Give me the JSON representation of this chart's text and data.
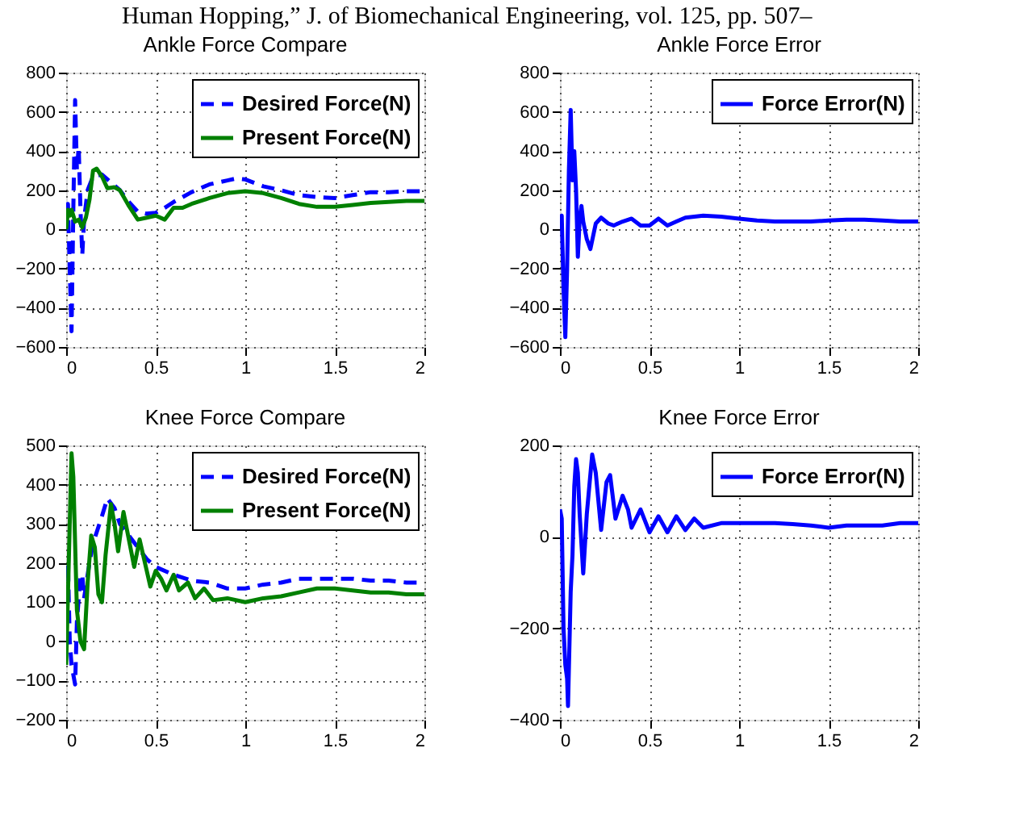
{
  "chart_data": [
    {
      "type": "line",
      "title": "Ankle Force Compare",
      "annotations": [
        "Human Hopping,” J. of Biomechanical Engineering, vol. 125, pp. 507–"
      ],
      "xlim": [
        0,
        2
      ],
      "xticks": [
        0,
        0.5,
        1,
        1.5,
        2
      ],
      "ylim": [
        -600,
        800
      ],
      "yticks": [
        -600,
        -400,
        -200,
        0,
        200,
        400,
        600,
        800
      ],
      "grid": true,
      "legend": "top right",
      "series": [
        {
          "name": "Desired Force(N)",
          "color": "#0000ff",
          "line_style": "dashed",
          "x": [
            0,
            0.01,
            0.02,
            0.03,
            0.04,
            0.05,
            0.06,
            0.07,
            0.08,
            0.09,
            0.1,
            0.12,
            0.15,
            0.2,
            0.25,
            0.3,
            0.35,
            0.4,
            0.45,
            0.5,
            0.55,
            0.6,
            0.7,
            0.8,
            0.9,
            0.95,
            1.0,
            1.1,
            1.2,
            1.3,
            1.4,
            1.5,
            1.6,
            1.7,
            1.8,
            1.9,
            2.0
          ],
          "values": [
            0,
            130,
            -200,
            -520,
            100,
            660,
            300,
            420,
            100,
            -130,
            50,
            200,
            270,
            280,
            240,
            200,
            140,
            90,
            80,
            85,
            110,
            140,
            190,
            230,
            250,
            260,
            255,
            220,
            200,
            175,
            165,
            160,
            175,
            190,
            190,
            195,
            195
          ]
        },
        {
          "name": "Present Force(N)",
          "color": "#008000",
          "line_style": "solid",
          "x": [
            0,
            0.01,
            0.02,
            0.03,
            0.05,
            0.07,
            0.09,
            0.11,
            0.13,
            0.15,
            0.17,
            0.2,
            0.23,
            0.27,
            0.3,
            0.35,
            0.4,
            0.45,
            0.5,
            0.55,
            0.6,
            0.65,
            0.7,
            0.8,
            0.9,
            1.0,
            1.1,
            1.2,
            1.3,
            1.4,
            1.5,
            1.6,
            1.7,
            1.8,
            1.9,
            2.0
          ],
          "values": [
            0,
            100,
            70,
            100,
            40,
            50,
            10,
            60,
            150,
            300,
            310,
            270,
            210,
            215,
            200,
            120,
            50,
            60,
            70,
            50,
            110,
            110,
            130,
            160,
            185,
            195,
            185,
            160,
            130,
            115,
            115,
            125,
            135,
            140,
            145,
            145
          ]
        }
      ]
    },
    {
      "type": "line",
      "title": "Ankle Force Error",
      "xlim": [
        0,
        2
      ],
      "xticks": [
        0,
        0.5,
        1,
        1.5,
        2
      ],
      "ylim": [
        -600,
        800
      ],
      "yticks": [
        -600,
        -400,
        -200,
        0,
        200,
        400,
        600,
        800
      ],
      "grid": true,
      "legend": "top right",
      "series": [
        {
          "name": "Force Error(N)",
          "color": "#0000ff",
          "line_style": "solid",
          "x": [
            0,
            0.01,
            0.02,
            0.03,
            0.04,
            0.05,
            0.06,
            0.07,
            0.08,
            0.09,
            0.1,
            0.11,
            0.12,
            0.13,
            0.15,
            0.17,
            0.2,
            0.23,
            0.27,
            0.3,
            0.35,
            0.4,
            0.45,
            0.5,
            0.55,
            0.6,
            0.65,
            0.7,
            0.8,
            0.9,
            1.0,
            1.1,
            1.2,
            1.3,
            1.4,
            1.5,
            1.6,
            1.7,
            1.8,
            1.9,
            2.0
          ],
          "values": [
            0,
            70,
            -300,
            -550,
            -200,
            300,
            610,
            250,
            400,
            200,
            -140,
            50,
            120,
            40,
            -50,
            -100,
            30,
            60,
            30,
            20,
            40,
            55,
            20,
            20,
            55,
            20,
            40,
            60,
            70,
            65,
            55,
            45,
            40,
            40,
            40,
            45,
            50,
            50,
            45,
            40,
            40
          ]
        }
      ]
    },
    {
      "type": "line",
      "title": "Knee Force Compare",
      "xlim": [
        0,
        2
      ],
      "xticks": [
        0,
        0.5,
        1,
        1.5,
        2
      ],
      "ylim": [
        -200,
        500
      ],
      "yticks": [
        -200,
        -100,
        0,
        100,
        200,
        300,
        400,
        500
      ],
      "grid": true,
      "legend": "top right",
      "series": [
        {
          "name": "Desired Force(N)",
          "color": "#0000ff",
          "line_style": "dashed",
          "x": [
            0,
            0.01,
            0.02,
            0.03,
            0.05,
            0.06,
            0.08,
            0.09,
            0.1,
            0.13,
            0.15,
            0.2,
            0.23,
            0.27,
            0.3,
            0.35,
            0.4,
            0.45,
            0.5,
            0.6,
            0.7,
            0.8,
            0.9,
            1.0,
            1.1,
            1.2,
            1.3,
            1.4,
            1.5,
            1.6,
            1.7,
            1.8,
            1.9,
            2.0
          ],
          "values": [
            0,
            200,
            0,
            -60,
            -110,
            50,
            170,
            170,
            110,
            200,
            250,
            320,
            365,
            340,
            300,
            270,
            240,
            210,
            190,
            170,
            155,
            150,
            135,
            135,
            145,
            150,
            160,
            160,
            160,
            160,
            155,
            155,
            150,
            150
          ]
        },
        {
          "name": "Present Force(N)",
          "color": "#008000",
          "line_style": "solid",
          "x": [
            0,
            0.02,
            0.03,
            0.04,
            0.06,
            0.08,
            0.1,
            0.12,
            0.14,
            0.16,
            0.18,
            0.2,
            0.22,
            0.25,
            0.27,
            0.29,
            0.32,
            0.35,
            0.38,
            0.41,
            0.44,
            0.47,
            0.5,
            0.53,
            0.56,
            0.6,
            0.63,
            0.68,
            0.72,
            0.77,
            0.82,
            0.9,
            1.0,
            1.1,
            1.2,
            1.3,
            1.4,
            1.5,
            1.6,
            1.7,
            1.8,
            1.9,
            2.0
          ],
          "values": [
            -60,
            300,
            480,
            420,
            80,
            0,
            -20,
            150,
            270,
            240,
            120,
            100,
            220,
            350,
            300,
            230,
            330,
            260,
            190,
            260,
            200,
            140,
            180,
            160,
            130,
            170,
            130,
            150,
            110,
            135,
            105,
            110,
            100,
            110,
            115,
            125,
            135,
            135,
            130,
            125,
            125,
            120,
            120
          ]
        }
      ]
    },
    {
      "type": "line",
      "title": "Knee Force Error",
      "xlim": [
        0,
        2
      ],
      "xticks": [
        0,
        0.5,
        1,
        1.5,
        2
      ],
      "ylim": [
        -400,
        200
      ],
      "yticks": [
        -400,
        -200,
        0,
        200
      ],
      "grid": true,
      "legend": "top right",
      "series": [
        {
          "name": "Force Error(N)",
          "color": "#0000ff",
          "line_style": "solid",
          "x": [
            0,
            0.01,
            0.02,
            0.03,
            0.04,
            0.045,
            0.06,
            0.07,
            0.08,
            0.09,
            0.1,
            0.11,
            0.13,
            0.15,
            0.18,
            0.2,
            0.23,
            0.26,
            0.28,
            0.31,
            0.35,
            0.38,
            0.4,
            0.45,
            0.5,
            0.55,
            0.6,
            0.65,
            0.7,
            0.75,
            0.8,
            0.9,
            1.0,
            1.1,
            1.2,
            1.3,
            1.4,
            1.5,
            1.6,
            1.7,
            1.8,
            1.9,
            2.0
          ],
          "values": [
            60,
            40,
            -200,
            -280,
            -310,
            -370,
            -120,
            -40,
            110,
            170,
            140,
            50,
            -80,
            50,
            180,
            140,
            15,
            120,
            135,
            40,
            90,
            60,
            20,
            60,
            10,
            45,
            10,
            45,
            15,
            40,
            20,
            30,
            30,
            30,
            30,
            28,
            25,
            20,
            25,
            25,
            25,
            30,
            30
          ]
        }
      ]
    }
  ]
}
